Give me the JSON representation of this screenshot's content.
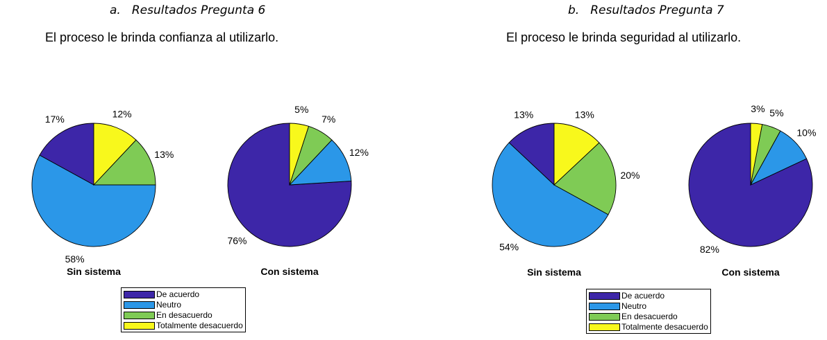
{
  "panels": [
    {
      "letter": "a.",
      "heading": "Resultados Pregunta 6",
      "question": "El proceso le brinda confianza al utilizarlo."
    },
    {
      "letter": "b.",
      "heading": "Resultados Pregunta 7",
      "question": "El proceso le brinda seguridad al utilizarlo."
    }
  ],
  "legend_labels": [
    "De acuerdo",
    "Neutro",
    "En desacuerdo",
    "Totalmente desacuerdo"
  ],
  "colors": {
    "de_acuerdo": "#3d26a8",
    "neutro": "#2b97e8",
    "en_desacuerdo": "#7fcb55",
    "totalmente_desacuerdo": "#f8f81c"
  },
  "chart_data": [
    {
      "type": "pie",
      "panel": "a",
      "title": "Sin sistema",
      "labels": [
        "De acuerdo",
        "Neutro",
        "En desacuerdo",
        "Totalmente desacuerdo"
      ],
      "values": [
        17,
        58,
        13,
        12
      ],
      "value_labels": [
        "17%",
        "58%",
        "13%",
        "12%"
      ]
    },
    {
      "type": "pie",
      "panel": "a",
      "title": "Con sistema",
      "labels": [
        "De acuerdo",
        "Neutro",
        "En desacuerdo",
        "Totalmente desacuerdo"
      ],
      "values": [
        76,
        12,
        7,
        5
      ],
      "value_labels": [
        "76%",
        "12%",
        "7%",
        "5%"
      ]
    },
    {
      "type": "pie",
      "panel": "b",
      "title": "Sin sistema",
      "labels": [
        "De acuerdo",
        "Neutro",
        "En desacuerdo",
        "Totalmente desacuerdo"
      ],
      "values": [
        13,
        54,
        20,
        13
      ],
      "value_labels": [
        "13%",
        "54%",
        "20%",
        "13%"
      ]
    },
    {
      "type": "pie",
      "panel": "b",
      "title": "Con sistema",
      "labels": [
        "De acuerdo",
        "Neutro",
        "En desacuerdo",
        "Totalmente desacuerdo"
      ],
      "values": [
        82,
        10,
        5,
        3
      ],
      "value_labels": [
        "82%",
        "10%",
        "5%",
        "3%"
      ]
    }
  ]
}
